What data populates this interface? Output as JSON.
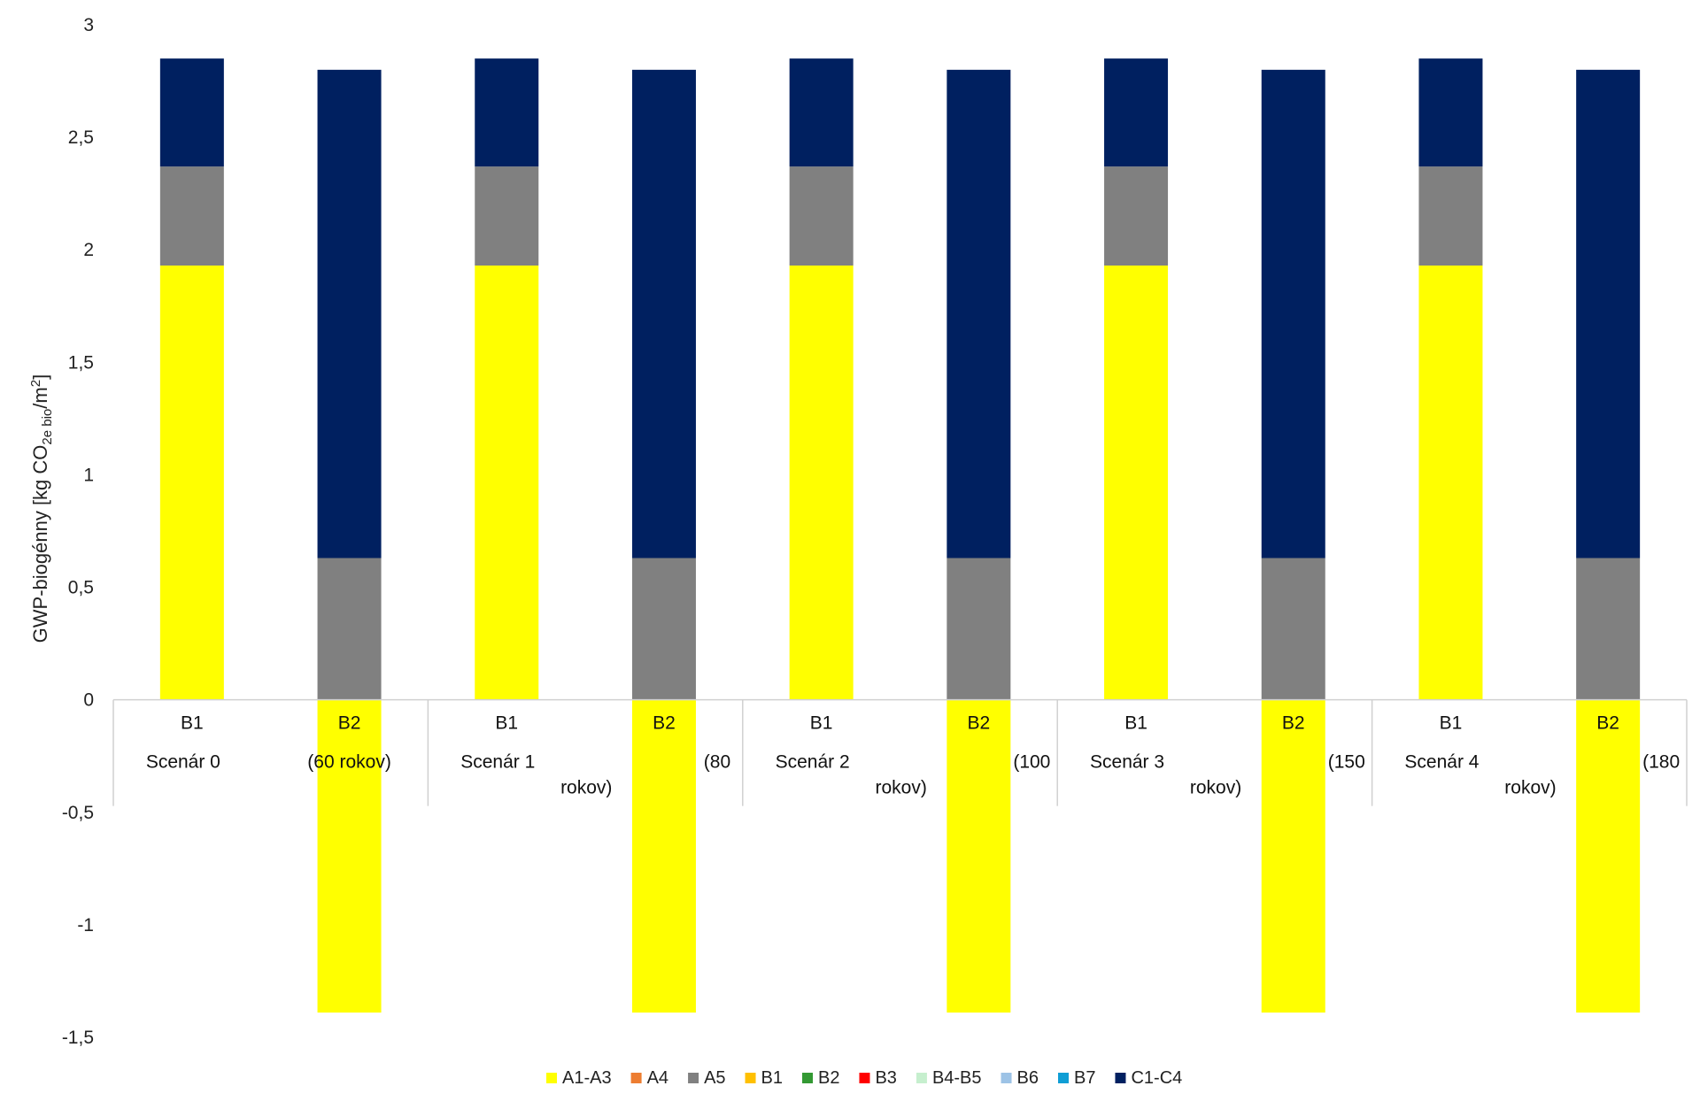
{
  "chart_data": {
    "type": "bar",
    "stacked": true,
    "ylabel": {
      "main": "GWP-biogénny [kg CO",
      "sub": "2e bio",
      "mid": "/m",
      "sup": "2",
      "end": "]"
    },
    "ylim": [
      -1.5,
      3
    ],
    "ytick_labels": [
      "3",
      "2,5",
      "2",
      "1,5",
      "1",
      "0,5",
      "0",
      "-0,5",
      "-1",
      "-1,5"
    ],
    "yticks": [
      3,
      2.5,
      2,
      1.5,
      1,
      0.5,
      0,
      -0.5,
      -1,
      -1.5
    ],
    "grid": false,
    "legend_position": "bottom",
    "categories": [
      "B1",
      "B2",
      "B1",
      "B2",
      "B1",
      "B2",
      "B1",
      "B2",
      "B1",
      "B2"
    ],
    "groups": [
      {
        "label": "Scenár 0",
        "extra": "(60 rokov)",
        "extra2": ""
      },
      {
        "label": "Scenár 1",
        "extra": "(80",
        "extra2": "rokov)"
      },
      {
        "label": "Scenár 2",
        "extra": "(100",
        "extra2": "rokov)"
      },
      {
        "label": "Scenár 3",
        "extra": "(150",
        "extra2": "rokov)"
      },
      {
        "label": "Scenár 4",
        "extra": "(180",
        "extra2": "rokov)"
      }
    ],
    "series": [
      {
        "name": "A1-A3",
        "color": "#FFFF00",
        "values": [
          1.93,
          -1.39,
          1.93,
          -1.39,
          1.93,
          -1.39,
          1.93,
          -1.39,
          1.93,
          -1.39
        ]
      },
      {
        "name": "A4",
        "color": "#ED7D31",
        "values": [
          0,
          0,
          0,
          0,
          0,
          0,
          0,
          0,
          0,
          0
        ]
      },
      {
        "name": "A5",
        "color": "#808080",
        "values": [
          0.44,
          0.63,
          0.44,
          0.63,
          0.44,
          0.63,
          0.44,
          0.63,
          0.44,
          0.63
        ]
      },
      {
        "name": "B1",
        "color": "#FFC000",
        "values": [
          0,
          0,
          0,
          0,
          0,
          0,
          0,
          0,
          0,
          0
        ]
      },
      {
        "name": "B2",
        "color": "#339933",
        "values": [
          0,
          0,
          0,
          0,
          0,
          0,
          0,
          0,
          0,
          0
        ]
      },
      {
        "name": "B3",
        "color": "#FF0000",
        "values": [
          0,
          0,
          0,
          0,
          0,
          0,
          0,
          0,
          0,
          0
        ]
      },
      {
        "name": "B4-B5",
        "color": "#C6EFCE",
        "values": [
          0,
          0,
          0,
          0,
          0,
          0,
          0,
          0,
          0,
          0
        ]
      },
      {
        "name": "B6",
        "color": "#9DC3E6",
        "values": [
          0,
          0,
          0,
          0,
          0,
          0,
          0,
          0,
          0,
          0
        ]
      },
      {
        "name": "B7",
        "color": "#0F9ED5",
        "values": [
          0,
          0,
          0,
          0,
          0,
          0,
          0,
          0,
          0,
          0
        ]
      },
      {
        "name": "C1-C4",
        "color": "#002060",
        "values": [
          0.48,
          2.17,
          0.48,
          2.17,
          0.48,
          2.17,
          0.48,
          2.17,
          0.48,
          2.17
        ]
      }
    ]
  }
}
